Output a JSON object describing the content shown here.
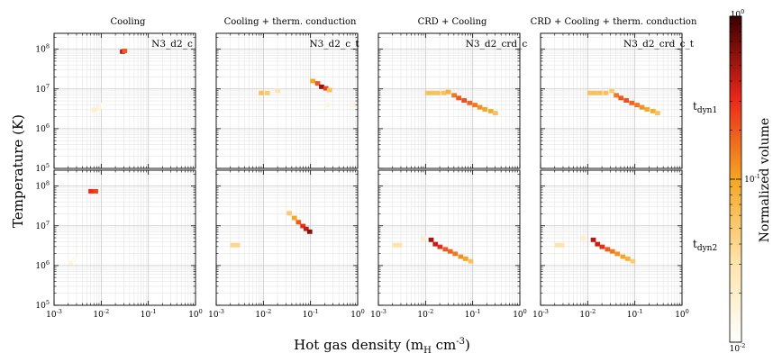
{
  "chart_data": {
    "type": "heatmap",
    "columns": [
      "Cooling",
      "Cooling + therm. conduction",
      "CRD + Cooling",
      "CRD + Cooling + therm. conduction"
    ],
    "rows": [
      {
        "label_main": "t",
        "label_sub": "dyn1"
      },
      {
        "label_main": "t",
        "label_sub": "dyn2"
      }
    ],
    "xlabel": {
      "main": "Hot gas density (m",
      "sub": "H",
      "tail": " cm",
      "sup": "-3",
      "end": ")"
    },
    "ylabel": "Temperature (K)",
    "colorbar_label": "Normalized volume",
    "x_ticks": [
      {
        "base": "10",
        "exp": "-3"
      },
      {
        "base": "10",
        "exp": "-2"
      },
      {
        "base": "10",
        "exp": "-1"
      },
      {
        "base": "10",
        "exp": "0"
      }
    ],
    "y_ticks": [
      {
        "base": "10",
        "exp": "5"
      },
      {
        "base": "10",
        "exp": "6"
      },
      {
        "base": "10",
        "exp": "7"
      },
      {
        "base": "10",
        "exp": "8"
      }
    ],
    "cbar_ticks": [
      {
        "base": "10",
        "exp": "-2"
      },
      {
        "base": "10",
        "exp": "-1"
      },
      {
        "base": "10",
        "exp": "0"
      }
    ],
    "xlim_log10": [
      -3,
      0
    ],
    "ylim_log10": [
      5,
      8.4
    ],
    "clim_log10": [
      -2,
      0
    ],
    "colors": {
      "low": "#ffffff",
      "mid": "#f5a623",
      "high": "#e8261a",
      "top": "#3a0000"
    },
    "panels": [
      {
        "row": 0,
        "col": 0,
        "name": "N3_d2_c",
        "cells": [
          {
            "x": 0.028,
            "y": 88000000.0,
            "v": 0.45
          },
          {
            "x": 0.031,
            "y": 92000000.0,
            "v": 0.2
          },
          {
            "x": 0.007,
            "y": 3000000.0,
            "v": 0.02
          },
          {
            "x": 0.009,
            "y": 3500000.0,
            "v": 0.015
          },
          {
            "x": 0.011,
            "y": 4000000.0,
            "v": 0.012
          }
        ]
      },
      {
        "row": 0,
        "col": 1,
        "name": "N3_d2_c_t",
        "cells": [
          {
            "x": 0.009,
            "y": 8000000.0,
            "v": 0.06
          },
          {
            "x": 0.012,
            "y": 8000000.0,
            "v": 0.05
          },
          {
            "x": 0.02,
            "y": 9000000.0,
            "v": 0.03
          },
          {
            "x": 0.11,
            "y": 16000000.0,
            "v": 0.1
          },
          {
            "x": 0.14,
            "y": 14000000.0,
            "v": 0.2
          },
          {
            "x": 0.17,
            "y": 11500000.0,
            "v": 0.55
          },
          {
            "x": 0.21,
            "y": 10500000.0,
            "v": 0.25
          },
          {
            "x": 0.25,
            "y": 9500000.0,
            "v": 0.06
          },
          {
            "x": 0.22,
            "y": 4000000.0,
            "v": 0.015
          },
          {
            "x": 0.8,
            "y": 4000000.0,
            "v": 0.015
          }
        ]
      },
      {
        "row": 0,
        "col": 2,
        "name": "N3_d2_crd_c",
        "cells": [
          {
            "x": 0.011,
            "y": 8000000.0,
            "v": 0.06
          },
          {
            "x": 0.014,
            "y": 8000000.0,
            "v": 0.06
          },
          {
            "x": 0.018,
            "y": 8000000.0,
            "v": 0.06
          },
          {
            "x": 0.024,
            "y": 8000000.0,
            "v": 0.06
          },
          {
            "x": 0.03,
            "y": 8500000.0,
            "v": 0.08
          },
          {
            "x": 0.04,
            "y": 7000000.0,
            "v": 0.15
          },
          {
            "x": 0.05,
            "y": 6000000.0,
            "v": 0.2
          },
          {
            "x": 0.065,
            "y": 5200000.0,
            "v": 0.22
          },
          {
            "x": 0.085,
            "y": 4500000.0,
            "v": 0.18
          },
          {
            "x": 0.11,
            "y": 4000000.0,
            "v": 0.15
          },
          {
            "x": 0.14,
            "y": 3500000.0,
            "v": 0.12
          },
          {
            "x": 0.18,
            "y": 3100000.0,
            "v": 0.1
          },
          {
            "x": 0.24,
            "y": 2800000.0,
            "v": 0.09
          },
          {
            "x": 0.3,
            "y": 2500000.0,
            "v": 0.06
          }
        ]
      },
      {
        "row": 0,
        "col": 3,
        "name": "N3_d2_crd_c_t",
        "cells": [
          {
            "x": 0.011,
            "y": 8000000.0,
            "v": 0.06
          },
          {
            "x": 0.014,
            "y": 8000000.0,
            "v": 0.06
          },
          {
            "x": 0.018,
            "y": 8000000.0,
            "v": 0.06
          },
          {
            "x": 0.024,
            "y": 8000000.0,
            "v": 0.06
          },
          {
            "x": 0.032,
            "y": 9000000.0,
            "v": 0.05
          },
          {
            "x": 0.04,
            "y": 7000000.0,
            "v": 0.15
          },
          {
            "x": 0.05,
            "y": 6000000.0,
            "v": 0.2
          },
          {
            "x": 0.065,
            "y": 5200000.0,
            "v": 0.22
          },
          {
            "x": 0.085,
            "y": 4500000.0,
            "v": 0.18
          },
          {
            "x": 0.11,
            "y": 4000000.0,
            "v": 0.15
          },
          {
            "x": 0.14,
            "y": 3500000.0,
            "v": 0.12
          },
          {
            "x": 0.18,
            "y": 3100000.0,
            "v": 0.1
          },
          {
            "x": 0.24,
            "y": 2800000.0,
            "v": 0.09
          },
          {
            "x": 0.3,
            "y": 2500000.0,
            "v": 0.06
          }
        ]
      },
      {
        "row": 1,
        "col": 0,
        "name": "",
        "cells": [
          {
            "x": 0.006,
            "y": 75000000.0,
            "v": 0.3
          },
          {
            "x": 0.0075,
            "y": 75000000.0,
            "v": 0.25
          },
          {
            "x": 0.0022,
            "y": 1200000.0,
            "v": 0.015
          },
          {
            "x": 0.0027,
            "y": 1400000.0,
            "v": 0.012
          }
        ]
      },
      {
        "row": 1,
        "col": 1,
        "name": "",
        "cells": [
          {
            "x": 0.0022,
            "y": 3300000.0,
            "v": 0.04
          },
          {
            "x": 0.0028,
            "y": 3300000.0,
            "v": 0.04
          },
          {
            "x": 0.035,
            "y": 21000000.0,
            "v": 0.05
          },
          {
            "x": 0.045,
            "y": 16000000.0,
            "v": 0.1
          },
          {
            "x": 0.055,
            "y": 12500000.0,
            "v": 0.2
          },
          {
            "x": 0.068,
            "y": 10000000.0,
            "v": 0.3
          },
          {
            "x": 0.08,
            "y": 8500000.0,
            "v": 0.4
          },
          {
            "x": 0.095,
            "y": 7200000.0,
            "v": 0.6
          }
        ]
      },
      {
        "row": 1,
        "col": 2,
        "name": "",
        "cells": [
          {
            "x": 0.0022,
            "y": 3300000.0,
            "v": 0.03
          },
          {
            "x": 0.0028,
            "y": 3300000.0,
            "v": 0.03
          },
          {
            "x": 0.009,
            "y": 5000000.0,
            "v": 0.02
          },
          {
            "x": 0.013,
            "y": 4500000.0,
            "v": 0.5
          },
          {
            "x": 0.016,
            "y": 3500000.0,
            "v": 0.4
          },
          {
            "x": 0.02,
            "y": 3000000.0,
            "v": 0.3
          },
          {
            "x": 0.026,
            "y": 2600000.0,
            "v": 0.2
          },
          {
            "x": 0.033,
            "y": 2300000.0,
            "v": 0.18
          },
          {
            "x": 0.042,
            "y": 2000000.0,
            "v": 0.15
          },
          {
            "x": 0.055,
            "y": 1700000.0,
            "v": 0.12
          },
          {
            "x": 0.07,
            "y": 1500000.0,
            "v": 0.1
          },
          {
            "x": 0.09,
            "y": 1300000.0,
            "v": 0.06
          }
        ]
      },
      {
        "row": 1,
        "col": 3,
        "name": "",
        "cells": [
          {
            "x": 0.0022,
            "y": 3300000.0,
            "v": 0.03
          },
          {
            "x": 0.0028,
            "y": 3300000.0,
            "v": 0.03
          },
          {
            "x": 0.008,
            "y": 5000000.0,
            "v": 0.02
          },
          {
            "x": 0.013,
            "y": 4500000.0,
            "v": 0.45
          },
          {
            "x": 0.016,
            "y": 3500000.0,
            "v": 0.4
          },
          {
            "x": 0.02,
            "y": 3000000.0,
            "v": 0.3
          },
          {
            "x": 0.026,
            "y": 2600000.0,
            "v": 0.2
          },
          {
            "x": 0.033,
            "y": 2300000.0,
            "v": 0.15
          },
          {
            "x": 0.042,
            "y": 2000000.0,
            "v": 0.12
          },
          {
            "x": 0.055,
            "y": 1700000.0,
            "v": 0.1
          },
          {
            "x": 0.07,
            "y": 1500000.0,
            "v": 0.08
          },
          {
            "x": 0.09,
            "y": 1300000.0,
            "v": 0.05
          }
        ]
      }
    ]
  }
}
